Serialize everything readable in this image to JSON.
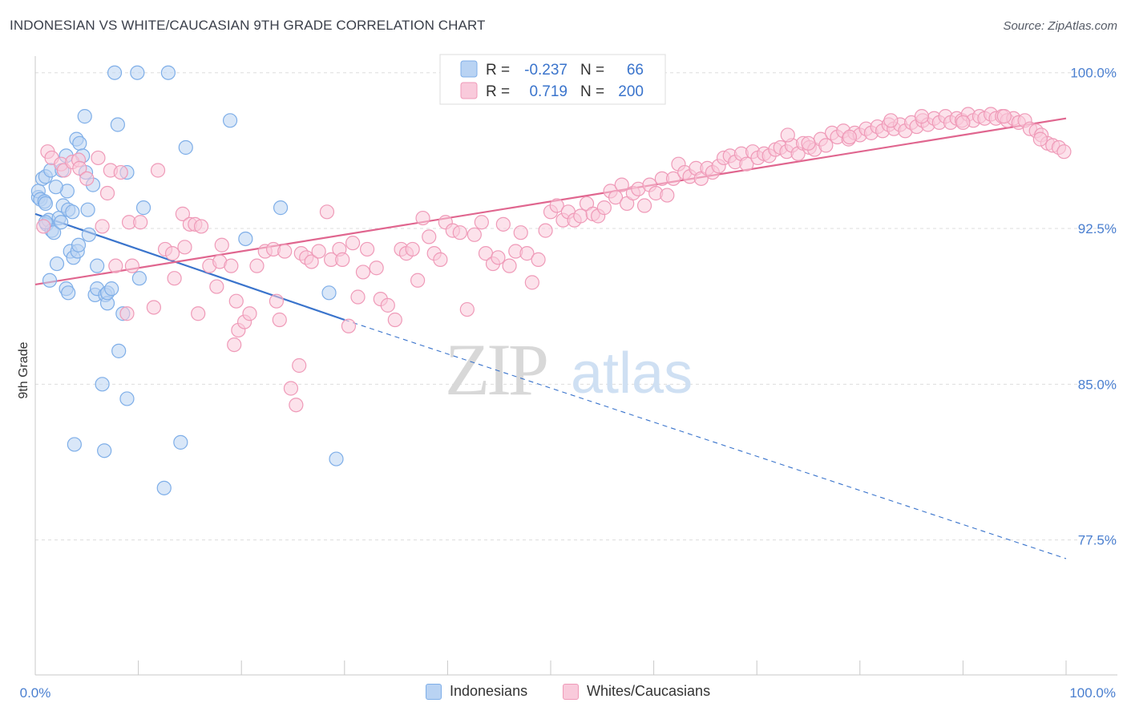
{
  "title": "INDONESIAN VS WHITE/CAUCASIAN 9TH GRADE CORRELATION CHART",
  "source": "Source: ZipAtlas.com",
  "watermark": {
    "zip": "ZIP",
    "atlas": "atlas"
  },
  "colors": {
    "blue": "#7eaee8",
    "blue_fill": "#b9d3f3",
    "blue_line": "#3a74cc",
    "pink": "#ef9ab8",
    "pink_fill": "#f9cadb",
    "pink_line": "#e0668f",
    "tick_text": "#4a7fd0",
    "grid": "#dddddd"
  },
  "legend_box": {
    "rows": [
      {
        "r_label": "R =",
        "r_value": "-0.237",
        "n_label": "N =",
        "n_value": "66",
        "series": "blue"
      },
      {
        "r_label": "R =",
        "r_value": "0.719",
        "n_label": "N =",
        "n_value": "200",
        "series": "pink"
      }
    ]
  },
  "bottom_legend": [
    {
      "label": "Indonesians",
      "series": "blue"
    },
    {
      "label": "Whites/Caucasians",
      "series": "pink"
    }
  ],
  "chart_data": {
    "type": "scatter",
    "title": "INDONESIAN VS WHITE/CAUCASIAN 9TH GRADE CORRELATION CHART",
    "xlabel": "",
    "ylabel": "9th Grade",
    "xlim": [
      0,
      100
    ],
    "ylim": [
      71.0,
      100.8
    ],
    "x_tick_labels": [
      "0.0%",
      "100.0%"
    ],
    "y_ticks": [
      {
        "value": 100.0,
        "label": "100.0%"
      },
      {
        "value": 92.5,
        "label": "92.5%"
      },
      {
        "value": 85.0,
        "label": "85.0%"
      },
      {
        "value": 77.5,
        "label": "77.5%"
      }
    ],
    "grid": true,
    "legend_position": "top-center",
    "series": [
      {
        "name": "Indonesians",
        "color": "blue",
        "r": -0.237,
        "n": 66,
        "trend": {
          "x0": 0,
          "y0": 93.2,
          "x1": 30,
          "y1": 88.1,
          "dashed_to_x": 100,
          "dashed_to_y": 76.6
        },
        "points": [
          [
            0.3,
            94.0
          ],
          [
            0.3,
            94.3
          ],
          [
            0.5,
            93.9
          ],
          [
            0.7,
            94.9
          ],
          [
            0.9,
            93.8
          ],
          [
            1.0,
            93.7
          ],
          [
            1.0,
            95.0
          ],
          [
            1.1,
            92.7
          ],
          [
            1.3,
            92.9
          ],
          [
            1.4,
            90.0
          ],
          [
            1.5,
            95.3
          ],
          [
            1.6,
            92.4
          ],
          [
            1.8,
            92.3
          ],
          [
            2.1,
            90.8
          ],
          [
            2.3,
            93.0
          ],
          [
            2.5,
            92.8
          ],
          [
            2.6,
            95.3
          ],
          [
            2.7,
            93.6
          ],
          [
            3.0,
            89.6
          ],
          [
            3.1,
            94.3
          ],
          [
            3.2,
            89.4
          ],
          [
            3.2,
            93.4
          ],
          [
            3.4,
            91.4
          ],
          [
            3.6,
            93.3
          ],
          [
            3.7,
            91.1
          ],
          [
            4.0,
            96.8
          ],
          [
            4.1,
            91.4
          ],
          [
            4.2,
            91.7
          ],
          [
            4.3,
            96.6
          ],
          [
            4.6,
            96.0
          ],
          [
            4.8,
            97.9
          ],
          [
            4.9,
            95.2
          ],
          [
            5.1,
            93.4
          ],
          [
            5.2,
            92.2
          ],
          [
            5.6,
            94.6
          ],
          [
            5.8,
            89.3
          ],
          [
            6.0,
            90.7
          ],
          [
            6.0,
            89.6
          ],
          [
            6.5,
            85.0
          ],
          [
            6.7,
            81.8
          ],
          [
            6.8,
            89.3
          ],
          [
            7.0,
            88.9
          ],
          [
            7.0,
            89.4
          ],
          [
            7.4,
            89.6
          ],
          [
            7.7,
            100.0
          ],
          [
            8.0,
            97.5
          ],
          [
            8.1,
            86.6
          ],
          [
            8.5,
            88.4
          ],
          [
            8.9,
            84.3
          ],
          [
            8.9,
            95.2
          ],
          [
            9.9,
            100.0
          ],
          [
            10.1,
            90.1
          ],
          [
            10.5,
            93.5
          ],
          [
            12.5,
            80.0
          ],
          [
            12.9,
            100.0
          ],
          [
            14.1,
            82.2
          ],
          [
            14.6,
            96.4
          ],
          [
            18.9,
            97.7
          ],
          [
            20.4,
            92.0
          ],
          [
            23.8,
            93.5
          ],
          [
            28.5,
            89.4
          ],
          [
            29.2,
            81.4
          ],
          [
            3.8,
            82.1
          ],
          [
            1.0,
            92.8
          ],
          [
            2.0,
            94.5
          ],
          [
            3.0,
            96.0
          ]
        ]
      },
      {
        "name": "Whites/Caucasians",
        "color": "pink",
        "r": 0.719,
        "n": 200,
        "trend": {
          "x0": 0,
          "y0": 89.8,
          "x1": 100,
          "y1": 97.8
        },
        "points": [
          [
            0.8,
            92.6
          ],
          [
            1.2,
            96.2
          ],
          [
            1.6,
            95.9
          ],
          [
            2.5,
            95.6
          ],
          [
            2.8,
            95.3
          ],
          [
            3.6,
            95.7
          ],
          [
            4.2,
            95.8
          ],
          [
            4.3,
            95.4
          ],
          [
            5.0,
            94.9
          ],
          [
            6.1,
            95.9
          ],
          [
            6.5,
            92.6
          ],
          [
            7.0,
            94.2
          ],
          [
            7.3,
            95.3
          ],
          [
            7.8,
            90.7
          ],
          [
            8.3,
            95.2
          ],
          [
            8.9,
            88.4
          ],
          [
            9.1,
            92.8
          ],
          [
            9.4,
            90.7
          ],
          [
            10.2,
            92.8
          ],
          [
            11.5,
            88.7
          ],
          [
            11.9,
            95.3
          ],
          [
            12.6,
            91.5
          ],
          [
            13.3,
            91.3
          ],
          [
            13.5,
            90.1
          ],
          [
            14.3,
            93.2
          ],
          [
            14.5,
            91.6
          ],
          [
            15.0,
            92.7
          ],
          [
            15.5,
            92.7
          ],
          [
            15.8,
            88.4
          ],
          [
            16.1,
            92.6
          ],
          [
            16.9,
            90.7
          ],
          [
            17.6,
            89.7
          ],
          [
            17.9,
            90.9
          ],
          [
            18.1,
            91.7
          ],
          [
            19.0,
            90.7
          ],
          [
            19.3,
            86.9
          ],
          [
            19.5,
            89.0
          ],
          [
            19.7,
            87.6
          ],
          [
            20.3,
            88.0
          ],
          [
            20.8,
            88.4
          ],
          [
            21.5,
            90.7
          ],
          [
            22.3,
            91.4
          ],
          [
            23.1,
            91.5
          ],
          [
            23.4,
            89.0
          ],
          [
            23.7,
            88.1
          ],
          [
            24.2,
            91.4
          ],
          [
            24.8,
            84.8
          ],
          [
            25.3,
            84.0
          ],
          [
            25.6,
            85.9
          ],
          [
            25.8,
            91.3
          ],
          [
            26.3,
            91.1
          ],
          [
            26.8,
            90.9
          ],
          [
            27.5,
            91.4
          ],
          [
            28.3,
            93.3
          ],
          [
            28.7,
            91.0
          ],
          [
            29.5,
            91.5
          ],
          [
            29.8,
            91.0
          ],
          [
            30.4,
            87.8
          ],
          [
            30.8,
            91.8
          ],
          [
            31.3,
            89.2
          ],
          [
            31.8,
            90.4
          ],
          [
            32.2,
            91.5
          ],
          [
            33.1,
            90.6
          ],
          [
            33.5,
            89.1
          ],
          [
            34.2,
            88.8
          ],
          [
            34.9,
            88.1
          ],
          [
            35.5,
            91.5
          ],
          [
            36.0,
            91.3
          ],
          [
            36.6,
            91.5
          ],
          [
            37.1,
            90.0
          ],
          [
            37.6,
            93.0
          ],
          [
            38.2,
            92.1
          ],
          [
            38.7,
            91.3
          ],
          [
            39.3,
            91.0
          ],
          [
            39.8,
            92.8
          ],
          [
            40.5,
            92.4
          ],
          [
            41.2,
            92.3
          ],
          [
            41.9,
            88.6
          ],
          [
            42.6,
            92.2
          ],
          [
            43.3,
            92.8
          ],
          [
            43.7,
            91.3
          ],
          [
            44.4,
            90.8
          ],
          [
            44.9,
            91.1
          ],
          [
            45.4,
            92.7
          ],
          [
            46.0,
            90.7
          ],
          [
            46.6,
            91.4
          ],
          [
            47.1,
            92.3
          ],
          [
            47.7,
            91.3
          ],
          [
            48.2,
            89.9
          ],
          [
            48.8,
            91.0
          ],
          [
            49.5,
            92.4
          ],
          [
            50.0,
            93.3
          ],
          [
            50.6,
            93.6
          ],
          [
            51.2,
            92.9
          ],
          [
            51.7,
            93.3
          ],
          [
            52.3,
            92.9
          ],
          [
            52.9,
            93.1
          ],
          [
            53.5,
            93.7
          ],
          [
            54.1,
            93.2
          ],
          [
            54.6,
            93.1
          ],
          [
            55.2,
            93.5
          ],
          [
            55.8,
            94.3
          ],
          [
            56.3,
            94.0
          ],
          [
            56.9,
            94.6
          ],
          [
            57.4,
            93.7
          ],
          [
            58.0,
            94.2
          ],
          [
            58.5,
            94.4
          ],
          [
            59.1,
            93.6
          ],
          [
            59.6,
            94.6
          ],
          [
            60.2,
            94.2
          ],
          [
            60.8,
            94.9
          ],
          [
            61.3,
            94.1
          ],
          [
            61.9,
            94.9
          ],
          [
            62.4,
            95.6
          ],
          [
            63.0,
            95.2
          ],
          [
            63.5,
            95.0
          ],
          [
            64.1,
            95.4
          ],
          [
            64.6,
            94.9
          ],
          [
            65.2,
            95.4
          ],
          [
            65.7,
            95.2
          ],
          [
            66.3,
            95.5
          ],
          [
            66.8,
            95.9
          ],
          [
            67.4,
            96.0
          ],
          [
            67.9,
            95.7
          ],
          [
            68.5,
            96.1
          ],
          [
            69.0,
            95.6
          ],
          [
            69.6,
            96.2
          ],
          [
            70.1,
            95.9
          ],
          [
            70.7,
            96.1
          ],
          [
            71.2,
            96.0
          ],
          [
            71.8,
            96.3
          ],
          [
            72.3,
            96.4
          ],
          [
            72.9,
            96.2
          ],
          [
            73.4,
            96.5
          ],
          [
            74.0,
            96.1
          ],
          [
            74.5,
            96.6
          ],
          [
            75.1,
            96.4
          ],
          [
            75.6,
            96.3
          ],
          [
            76.2,
            96.8
          ],
          [
            76.7,
            96.5
          ],
          [
            77.3,
            97.1
          ],
          [
            77.8,
            96.9
          ],
          [
            78.4,
            97.2
          ],
          [
            78.9,
            96.8
          ],
          [
            79.5,
            97.1
          ],
          [
            80.0,
            97.0
          ],
          [
            80.6,
            97.3
          ],
          [
            81.1,
            97.1
          ],
          [
            81.7,
            97.4
          ],
          [
            82.2,
            97.2
          ],
          [
            82.8,
            97.5
          ],
          [
            83.3,
            97.3
          ],
          [
            83.9,
            97.5
          ],
          [
            84.4,
            97.2
          ],
          [
            85.0,
            97.6
          ],
          [
            85.5,
            97.4
          ],
          [
            86.1,
            97.7
          ],
          [
            86.6,
            97.5
          ],
          [
            87.2,
            97.8
          ],
          [
            87.7,
            97.6
          ],
          [
            88.3,
            97.9
          ],
          [
            88.8,
            97.6
          ],
          [
            89.4,
            97.8
          ],
          [
            89.9,
            97.7
          ],
          [
            90.5,
            98.0
          ],
          [
            91.0,
            97.7
          ],
          [
            91.6,
            97.9
          ],
          [
            92.1,
            97.8
          ],
          [
            92.7,
            98.0
          ],
          [
            93.2,
            97.8
          ],
          [
            93.8,
            97.9
          ],
          [
            94.3,
            97.7
          ],
          [
            94.9,
            97.8
          ],
          [
            95.4,
            97.6
          ],
          [
            96.0,
            97.7
          ],
          [
            96.5,
            97.3
          ],
          [
            97.1,
            97.2
          ],
          [
            97.6,
            97.0
          ],
          [
            98.2,
            96.6
          ],
          [
            98.7,
            96.5
          ],
          [
            99.3,
            96.4
          ],
          [
            99.8,
            96.2
          ],
          [
            73.0,
            97.0
          ],
          [
            75.0,
            96.6
          ],
          [
            79.0,
            96.9
          ],
          [
            83.0,
            97.7
          ],
          [
            86.0,
            97.9
          ],
          [
            90.0,
            97.6
          ],
          [
            94.0,
            97.9
          ],
          [
            97.5,
            96.8
          ]
        ]
      }
    ]
  }
}
